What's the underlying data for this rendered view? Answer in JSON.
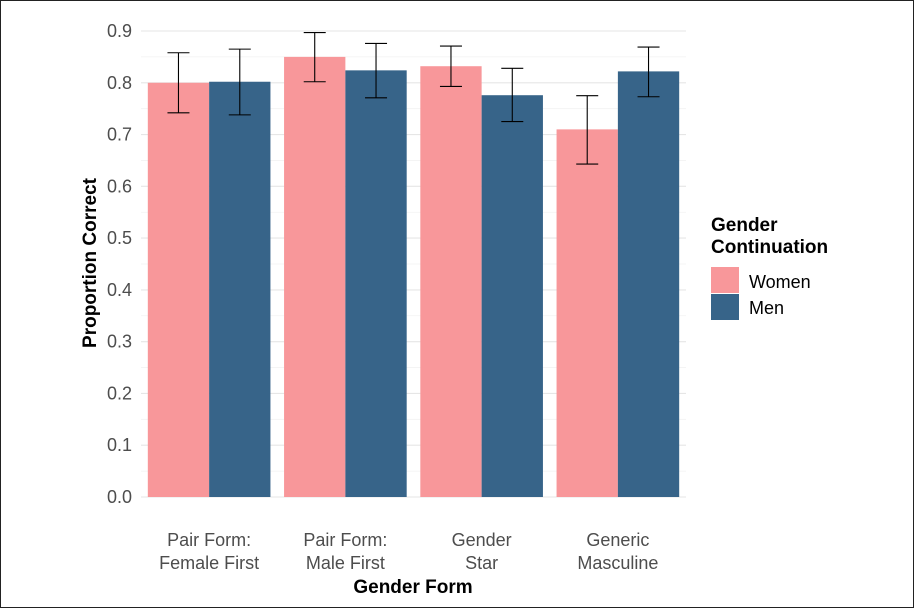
{
  "chart_data": {
    "type": "bar",
    "title": "",
    "xlabel": "Gender Form",
    "ylabel": "Proportion Correct",
    "ylim": [
      0,
      0.9
    ],
    "yticks": [
      "0.0",
      "0.1",
      "0.2",
      "0.3",
      "0.4",
      "0.5",
      "0.6",
      "0.7",
      "0.8",
      "0.9"
    ],
    "grid": true,
    "categories": [
      [
        "Pair Form:",
        "Female First"
      ],
      [
        "Pair Form:",
        "Male First"
      ],
      [
        "Gender",
        "Star"
      ],
      [
        "Generic",
        "Masculine"
      ]
    ],
    "legend": {
      "title": [
        "Gender",
        "Continuation"
      ],
      "placement": "right"
    },
    "series": [
      {
        "name": "Women",
        "color": "#F8979A",
        "values": [
          0.8,
          0.85,
          0.832,
          0.71
        ],
        "error_low": [
          0.742,
          0.802,
          0.793,
          0.643
        ],
        "error_high": [
          0.858,
          0.897,
          0.871,
          0.775
        ]
      },
      {
        "name": "Men",
        "color": "#376489",
        "values": [
          0.802,
          0.824,
          0.776,
          0.822
        ],
        "error_low": [
          0.738,
          0.771,
          0.725,
          0.773
        ],
        "error_high": [
          0.865,
          0.876,
          0.828,
          0.869
        ]
      }
    ]
  }
}
